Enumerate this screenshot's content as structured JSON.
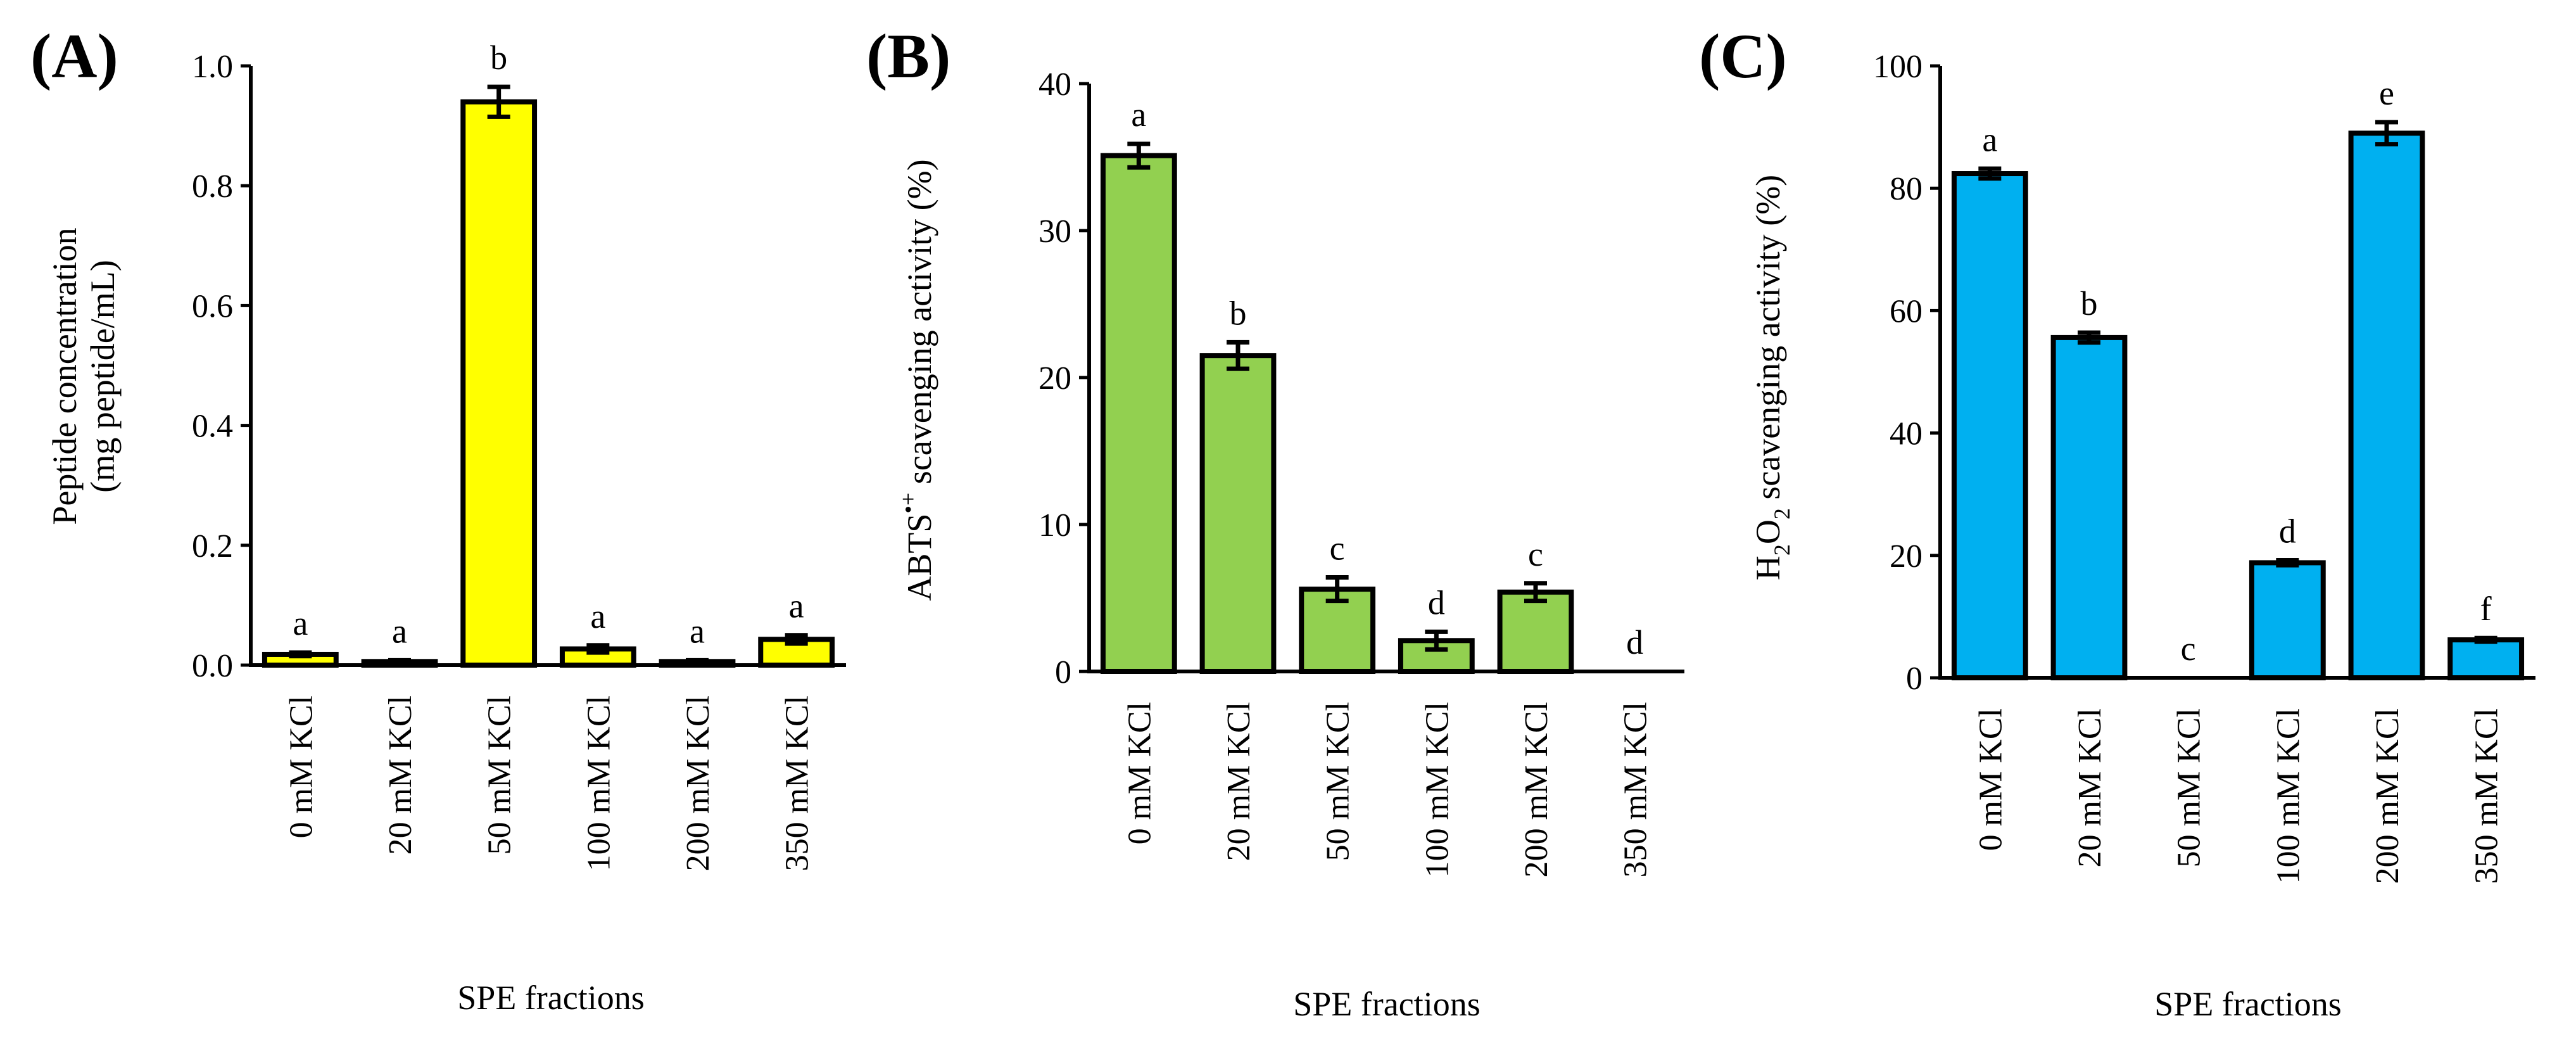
{
  "chart_data": [
    {
      "type": "bar",
      "panel": "(A)",
      "title": "",
      "xlabel": "SPE fractions",
      "ylabel_lines": [
        "Peptide concentration",
        "(mg peptide/mL)"
      ],
      "ylim": [
        0,
        1.0
      ],
      "ytick_labels": [
        "0.0",
        "0.2",
        "0.4",
        "0.6",
        "0.8",
        "1.0"
      ],
      "categories": [
        "0 mM KCl",
        "20 mM KCl",
        "50 mM KCl",
        "100 mM KCl",
        "200 mM KCl",
        "350 mM KCl"
      ],
      "values": [
        0.018,
        0.006,
        0.94,
        0.027,
        0.006,
        0.043
      ],
      "errors": [
        0.003,
        0.002,
        0.025,
        0.006,
        0.002,
        0.007
      ],
      "letters": [
        "a",
        "a",
        "b",
        "a",
        "a",
        "a"
      ],
      "color": "#FFFF00"
    },
    {
      "type": "bar",
      "panel": "(B)",
      "title": "",
      "xlabel": "SPE fractions",
      "ylabel_main": "ABTS",
      "ylabel_sup": "•+",
      "ylabel_rest": " scavenging activity (%)",
      "ylim": [
        0,
        40
      ],
      "ytick_labels": [
        "0",
        "10",
        "20",
        "30",
        "40"
      ],
      "categories": [
        "0 mM KCl",
        "20 mM KCl",
        "50 mM KCl",
        "100 mM KCl",
        "200 mM KCl",
        "350 mM KCl"
      ],
      "values": [
        35.1,
        21.5,
        5.6,
        2.1,
        5.4,
        0
      ],
      "errors": [
        0.8,
        0.9,
        0.8,
        0.6,
        0.6,
        0
      ],
      "letters": [
        "a",
        "b",
        "c",
        "d",
        "c",
        "d"
      ],
      "color": "#92D050"
    },
    {
      "type": "bar",
      "panel": "(C)",
      "title": "",
      "xlabel": "SPE fractions",
      "ylabel_main": "H",
      "ylabel_sub1": "2",
      "ylabel_mid": "O",
      "ylabel_sub2": "2",
      "ylabel_rest": " scavenging activity (%)",
      "ylim": [
        0,
        100
      ],
      "ytick_labels": [
        "0",
        "20",
        "40",
        "60",
        "80",
        "100"
      ],
      "categories": [
        "0 mM KCl",
        "20 mM KCl",
        "50 mM KCl",
        "100 mM KCl",
        "200 mM KCl",
        "350 mM KCl"
      ],
      "values": [
        82.4,
        55.6,
        0,
        18.8,
        89.0,
        6.2
      ],
      "errors": [
        0.8,
        0.8,
        0,
        0.4,
        1.8,
        0.3
      ],
      "letters": [
        "a",
        "b",
        "c",
        "d",
        "e",
        "f"
      ],
      "color": "#00B0F0"
    }
  ]
}
